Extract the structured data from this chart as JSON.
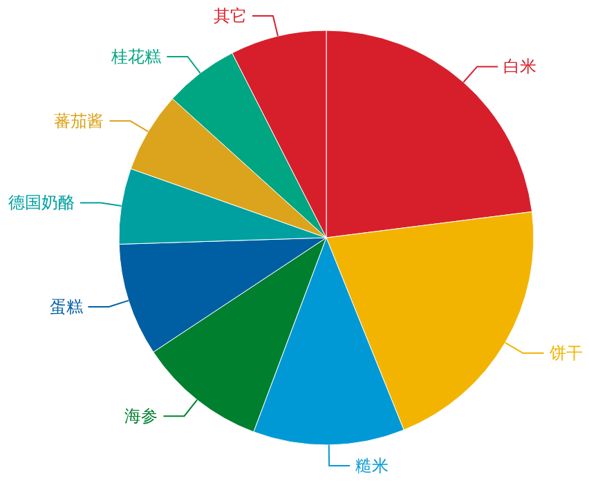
{
  "chart_data": {
    "type": "pie",
    "categories": [
      "白米",
      "饼干",
      "糙米",
      "海参",
      "蛋糕",
      "德国奶酪",
      "蕃茄酱",
      "桂花糕",
      "其它"
    ],
    "values": [
      23,
      20.9,
      11.8,
      10,
      8.8,
      5.9,
      6.3,
      5.8,
      7.5
    ],
    "colors": [
      "#d71f2b",
      "#f2b400",
      "#0099d6",
      "#007f2f",
      "#005fa3",
      "#00a0a0",
      "#dca41c",
      "#00a581",
      "#d71f2b"
    ]
  }
}
